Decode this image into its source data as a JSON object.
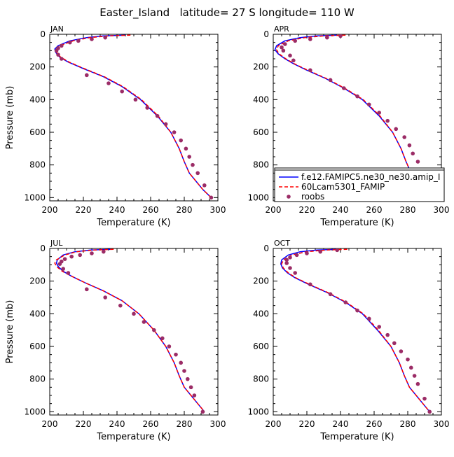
{
  "figure": {
    "title": "Easter_Island   latitude= 27 S longitude= 110 W"
  },
  "legend": {
    "panel": "APR",
    "entries": [
      {
        "label": "f.e12.FAMIPC5.ne30_ne30.amip_I",
        "color": "#0000ff",
        "style": "solid"
      },
      {
        "label": "60Lcam5301_FAMIP",
        "color": "#ff0000",
        "style": "dashed"
      },
      {
        "label": "roobs",
        "color": "#9b2c66",
        "style": "dot"
      }
    ]
  },
  "chart_data": [
    {
      "type": "line",
      "title": "JAN",
      "xlabel": "Temperature (K)",
      "ylabel": "Pressure (mb)",
      "xlim": [
        200,
        300
      ],
      "ylim": [
        1020,
        0
      ],
      "xticks": [
        "200",
        "220",
        "240",
        "260",
        "280",
        "300"
      ],
      "yticks": [
        "0",
        "200",
        "400",
        "600",
        "800",
        "1000"
      ],
      "y_inverted": true,
      "series": [
        {
          "name": "f.e12.FAMIPC5.ne30_ne30.amip_I",
          "color": "#0000ff",
          "style": "solid",
          "x": [
            245,
            232,
            222,
            212,
            205,
            203,
            203.5,
            206,
            211,
            220,
            232,
            243,
            254,
            264,
            272,
            277,
            280,
            283,
            287,
            291,
            296
          ],
          "y": [
            5,
            10,
            20,
            40,
            70,
            90,
            110,
            140,
            170,
            210,
            260,
            320,
            400,
            500,
            600,
            700,
            780,
            850,
            900,
            950,
            1000
          ]
        },
        {
          "name": "60Lcam5301_FAMIP",
          "color": "#ff0000",
          "style": "dashed",
          "x": [
            248,
            235,
            224,
            214,
            206,
            203.5,
            204,
            206.5,
            211.5,
            220.5,
            232.5,
            243.5,
            254.5,
            264.5,
            272,
            277,
            280,
            283,
            287,
            291,
            296
          ],
          "y": [
            5,
            10,
            20,
            40,
            70,
            90,
            110,
            140,
            170,
            210,
            260,
            320,
            400,
            500,
            600,
            700,
            780,
            850,
            900,
            950,
            1000
          ]
        },
        {
          "name": "roobs",
          "color": "#9b2c66",
          "style": "dot",
          "x": [
            233,
            225,
            217,
            212,
            207,
            205,
            204,
            205,
            207,
            222,
            235,
            243,
            251,
            258,
            264,
            269,
            274,
            278,
            281,
            283,
            285,
            288,
            292,
            296
          ],
          "y": [
            20,
            30,
            40,
            50,
            70,
            85,
            100,
            125,
            150,
            250,
            300,
            350,
            400,
            450,
            500,
            550,
            600,
            650,
            700,
            750,
            800,
            850,
            925,
            1000
          ]
        }
      ]
    },
    {
      "type": "line",
      "title": "APR",
      "xlabel": "Temperature (K)",
      "ylabel": "",
      "xlim": [
        200,
        300
      ],
      "ylim": [
        1020,
        0
      ],
      "xticks": [
        "200",
        "220",
        "240",
        "260",
        "280",
        "300"
      ],
      "yticks": [
        "0",
        "200",
        "400",
        "600",
        "800",
        "1000"
      ],
      "y_inverted": true,
      "series": [
        {
          "name": "f.e12.FAMIPC5.ne30_ne30.amip_I",
          "color": "#0000ff",
          "style": "solid",
          "x": [
            238,
            226,
            216,
            207,
            202,
            201,
            203,
            207,
            212,
            220,
            231,
            242,
            253,
            263,
            271,
            276,
            279,
            282,
            286,
            290,
            295
          ],
          "y": [
            5,
            10,
            20,
            40,
            70,
            95,
            120,
            150,
            180,
            220,
            270,
            330,
            400,
            500,
            600,
            700,
            780,
            850,
            900,
            950,
            1000
          ]
        },
        {
          "name": "60Lcam5301_FAMIP",
          "color": "#ff0000",
          "style": "dashed",
          "x": [
            243,
            230,
            219,
            209,
            203,
            202,
            203.5,
            207.5,
            212.5,
            220.5,
            231.5,
            242.5,
            253.5,
            263.5,
            271,
            276,
            279,
            282,
            286,
            290,
            295
          ],
          "y": [
            5,
            10,
            20,
            40,
            70,
            95,
            120,
            150,
            180,
            220,
            270,
            330,
            400,
            500,
            600,
            700,
            780,
            850,
            900,
            950,
            1000
          ]
        },
        {
          "name": "roobs",
          "color": "#9b2c66",
          "style": "dot",
          "x": [
            240,
            232,
            222,
            213,
            207,
            205,
            206,
            210,
            212,
            222,
            234,
            242,
            250,
            257,
            263,
            268,
            273,
            278,
            281,
            283,
            286,
            289,
            293,
            295
          ],
          "y": [
            10,
            20,
            30,
            40,
            60,
            80,
            100,
            130,
            160,
            220,
            280,
            330,
            380,
            430,
            480,
            530,
            580,
            630,
            680,
            730,
            780,
            830,
            920,
            1000
          ]
        }
      ]
    },
    {
      "type": "line",
      "title": "JUL",
      "xlabel": "Temperature (K)",
      "ylabel": "Pressure (mb)",
      "xlim": [
        200,
        300
      ],
      "ylim": [
        1020,
        0
      ],
      "xticks": [
        "200",
        "220",
        "240",
        "260",
        "280",
        "300"
      ],
      "yticks": [
        "0",
        "200",
        "400",
        "600",
        "800",
        "1000"
      ],
      "y_inverted": true,
      "series": [
        {
          "name": "f.e12.FAMIPC5.ne30_ne30.amip_I",
          "color": "#0000ff",
          "style": "solid",
          "x": [
            236,
            224,
            215,
            208,
            204.5,
            204,
            205,
            208,
            213,
            221,
            232,
            243,
            253,
            262,
            269,
            274,
            277,
            280,
            284,
            288,
            292
          ],
          "y": [
            5,
            10,
            20,
            40,
            70,
            90,
            110,
            140,
            170,
            210,
            260,
            320,
            400,
            500,
            600,
            700,
            780,
            850,
            900,
            950,
            1000
          ]
        },
        {
          "name": "60Lcam5301_FAMIP",
          "color": "#ff0000",
          "style": "dashed",
          "x": [
            238,
            226,
            216,
            209,
            204,
            203,
            204,
            207.5,
            213,
            221,
            232,
            243,
            253,
            262,
            269,
            274,
            277,
            280,
            284,
            288,
            292
          ],
          "y": [
            5,
            10,
            20,
            40,
            70,
            90,
            110,
            140,
            170,
            210,
            260,
            320,
            400,
            500,
            600,
            700,
            780,
            850,
            900,
            950,
            1000
          ]
        },
        {
          "name": "roobs",
          "color": "#9b2c66",
          "style": "dot",
          "x": [
            232,
            225,
            218,
            213,
            209,
            207,
            206,
            208,
            211,
            222,
            233,
            242,
            250,
            256,
            262,
            267,
            271,
            275,
            278,
            280,
            282,
            284,
            286,
            291
          ],
          "y": [
            20,
            30,
            40,
            50,
            65,
            80,
            95,
            125,
            150,
            250,
            300,
            350,
            400,
            450,
            500,
            550,
            600,
            650,
            700,
            750,
            800,
            850,
            900,
            1000
          ]
        }
      ]
    },
    {
      "type": "line",
      "title": "OCT",
      "xlabel": "Temperature (K)",
      "ylabel": "",
      "xlim": [
        200,
        300
      ],
      "ylim": [
        1020,
        0
      ],
      "xticks": [
        "200",
        "220",
        "240",
        "260",
        "280",
        "300"
      ],
      "yticks": [
        "0",
        "200",
        "400",
        "600",
        "800",
        "1000"
      ],
      "y_inverted": true,
      "series": [
        {
          "name": "f.e12.FAMIPC5.ne30_ne30.amip_I",
          "color": "#0000ff",
          "style": "solid",
          "x": [
            238,
            226,
            216,
            209,
            205,
            204.5,
            205.5,
            208.5,
            213,
            221,
            232,
            243,
            253,
            262,
            270,
            275,
            278,
            281,
            285,
            289,
            293
          ],
          "y": [
            5,
            10,
            20,
            40,
            70,
            95,
            120,
            150,
            180,
            220,
            270,
            330,
            400,
            500,
            600,
            700,
            780,
            850,
            900,
            950,
            1000
          ]
        },
        {
          "name": "60Lcam5301_FAMIP",
          "color": "#ff0000",
          "style": "dashed",
          "x": [
            244,
            231,
            220,
            211,
            206,
            205,
            206,
            209,
            213.5,
            221.5,
            232.5,
            243.5,
            253.5,
            262.5,
            270,
            275,
            278,
            281,
            285,
            289,
            293
          ],
          "y": [
            5,
            10,
            20,
            40,
            70,
            95,
            120,
            150,
            180,
            220,
            270,
            330,
            400,
            500,
            600,
            700,
            780,
            850,
            900,
            950,
            1000
          ]
        },
        {
          "name": "roobs",
          "color": "#9b2c66",
          "style": "dot",
          "x": [
            238,
            228,
            220,
            214,
            210,
            208,
            208,
            210,
            213,
            222,
            234,
            243,
            250,
            257,
            263,
            268,
            272,
            276,
            280,
            282,
            284,
            286,
            290,
            293
          ],
          "y": [
            10,
            20,
            30,
            40,
            55,
            70,
            90,
            120,
            150,
            220,
            280,
            330,
            380,
            430,
            480,
            530,
            580,
            630,
            680,
            730,
            780,
            830,
            920,
            1000
          ]
        }
      ]
    }
  ]
}
